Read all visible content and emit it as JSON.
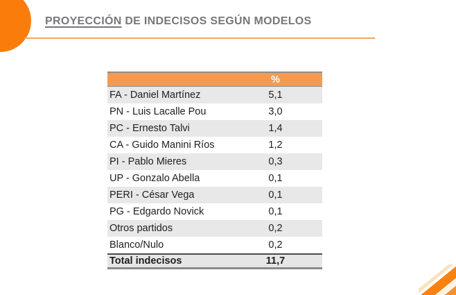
{
  "title": {
    "underlined": "PROYECCIÓN",
    "rest": " DE INDECISOS SEGÚN MODELOS"
  },
  "table": {
    "header": {
      "value_label": "%"
    },
    "rows": [
      {
        "label": "FA - Daniel Martínez",
        "value": "5,1"
      },
      {
        "label": "PN - Luis Lacalle Pou",
        "value": "3,0"
      },
      {
        "label": "PC - Ernesto Talvi",
        "value": "1,4"
      },
      {
        "label": "CA - Guido Manini Ríos",
        "value": "1,2"
      },
      {
        "label": "PI - Pablo Mieres",
        "value": "0,3"
      },
      {
        "label": "UP - Gonzalo Abella",
        "value": "0,1"
      },
      {
        "label": "PERI - César Vega",
        "value": "0,1"
      },
      {
        "label": "PG - Edgardo Novick",
        "value": "0,1"
      },
      {
        "label": "Otros partidos",
        "value": "0,2"
      },
      {
        "label": "Blanco/Nulo",
        "value": "0,2"
      },
      {
        "label": "Total indecisos",
        "value": "11,7",
        "total": true
      }
    ]
  },
  "chart_data": {
    "type": "table",
    "title": "PROYECCIÓN DE INDECISOS SEGÚN MODELOS",
    "columns": [
      "",
      "%"
    ],
    "categories": [
      "FA - Daniel Martínez",
      "PN - Luis Lacalle Pou",
      "PC - Ernesto Talvi",
      "CA - Guido Manini Ríos",
      "PI - Pablo Mieres",
      "UP - Gonzalo Abella",
      "PERI - César Vega",
      "PG - Edgardo Novick",
      "Otros partidos",
      "Blanco/Nulo",
      "Total indecisos"
    ],
    "values": [
      5.1,
      3.0,
      1.4,
      1.2,
      0.3,
      0.1,
      0.1,
      0.1,
      0.2,
      0.2,
      11.7
    ]
  },
  "colors": {
    "circle_orange": "#FA7D0B",
    "header_orange": "#F49B51",
    "rule_orange": "#F7A45C",
    "corner_stripe_orange": "#F8820F",
    "title_gray": "#76777B",
    "row_stripe": "#E8E8E8",
    "text_dark": "#1E1E1E",
    "border_gray": "#8E8E8E",
    "border_dark": "#4A4A4A"
  }
}
